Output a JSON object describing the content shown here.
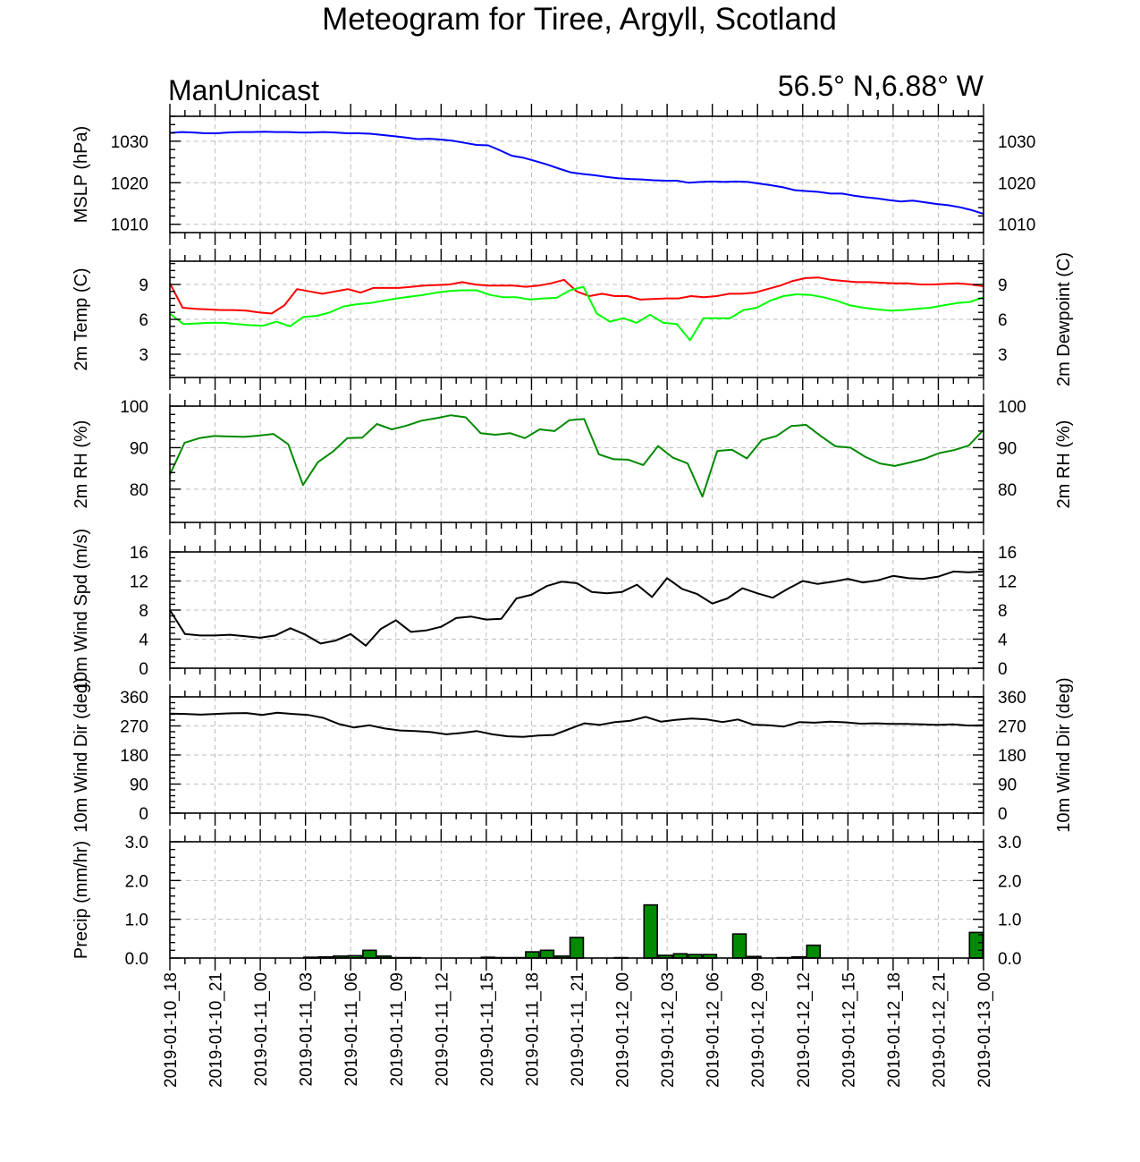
{
  "header": {
    "title": "Meteogram for Tiree, Argyll, Scotland",
    "model": "ManUnicast",
    "location": "56.5° N,6.88° W"
  },
  "time_labels": [
    "2019-01-10_18",
    "2019-01-10_21",
    "2019-01-11_00",
    "2019-01-11_03",
    "2019-01-11_06",
    "2019-01-11_09",
    "2019-01-11_12",
    "2019-01-11_15",
    "2019-01-11_18",
    "2019-01-11_21",
    "2019-01-12_00",
    "2019-01-12_03",
    "2019-01-12_06",
    "2019-01-12_09",
    "2019-01-12_12",
    "2019-01-12_15",
    "2019-01-12_18",
    "2019-01-12_21",
    "2019-01-13_00"
  ],
  "chart_data": [
    {
      "type": "line",
      "panel": "mslp",
      "ylabel": "MSLP (hPa)",
      "ylim": [
        1008,
        1036
      ],
      "yticks": [
        1010,
        1020,
        1030
      ],
      "tick_format": "0",
      "series": [
        {
          "color": "#0000ff",
          "values": [
            1032,
            1032.2,
            1032.1,
            1031.9,
            1031.9,
            1032.1,
            1032.2,
            1032.2,
            1032.3,
            1032.2,
            1032.2,
            1032.1,
            1032.1,
            1032.2,
            1032.1,
            1031.9,
            1031.9,
            1031.8,
            1031.5,
            1031.2,
            1030.9,
            1030.5,
            1030.6,
            1030.4,
            1030.1,
            1029.6,
            1029.1,
            1029,
            1027.8,
            1026.5,
            1026,
            1025.2,
            1024.4,
            1023.4,
            1022.5,
            1022.1,
            1021.8,
            1021.4,
            1021.1,
            1020.9,
            1020.8,
            1020.6,
            1020.5,
            1020.5,
            1020,
            1020.2,
            1020.3,
            1020.2,
            1020.3,
            1020.2,
            1019.8,
            1019.4,
            1018.9,
            1018.2,
            1018,
            1017.8,
            1017.4,
            1017.4,
            1016.9,
            1016.5,
            1016.2,
            1015.8,
            1015.5,
            1015.7,
            1015.3,
            1014.9,
            1014.6,
            1014.1,
            1013.4,
            1012.5
          ]
        }
      ]
    },
    {
      "type": "line",
      "panel": "temperature",
      "ylabel": "2m Temp (C)",
      "ylabel_right": "2m Dewpoint (C)",
      "ylim": [
        1,
        11
      ],
      "yticks": [
        3,
        6,
        9
      ],
      "tick_format": "0",
      "series": [
        {
          "color": "#ff0000",
          "values": [
            9.1,
            7,
            6.9,
            6.85,
            6.8,
            6.8,
            6.75,
            6.6,
            6.5,
            7.2,
            8.6,
            8.4,
            8.2,
            8.4,
            8.6,
            8.3,
            8.7,
            8.7,
            8.7,
            8.8,
            8.9,
            8.95,
            9,
            9.2,
            9.0,
            8.9,
            8.9,
            8.9,
            8.8,
            8.9,
            9.1,
            9.4,
            8.4,
            8.0,
            8.2,
            8.0,
            8.0,
            7.7,
            7.75,
            7.8,
            7.8,
            8.0,
            7.9,
            8.0,
            8.2,
            8.2,
            8.3,
            8.6,
            8.9,
            9.3,
            9.55,
            9.6,
            9.4,
            9.3,
            9.2,
            9.2,
            9.15,
            9.1,
            9.1,
            9.0,
            9.0,
            9.05,
            9.1,
            9.0,
            8.85
          ]
        },
        {
          "color": "#00ff00",
          "values": [
            6.5,
            5.6,
            5.65,
            5.7,
            5.7,
            5.6,
            5.5,
            5.45,
            5.8,
            5.4,
            6.2,
            6.3,
            6.6,
            7.1,
            7.3,
            7.4,
            7.6,
            7.8,
            7.95,
            8.1,
            8.3,
            8.45,
            8.5,
            8.5,
            8.1,
            7.9,
            7.9,
            7.7,
            7.8,
            7.85,
            8.5,
            8.8,
            6.5,
            5.8,
            6.1,
            5.7,
            6.4,
            5.7,
            5.6,
            4.2,
            6.1,
            6.1,
            6.1,
            6.8,
            7.0,
            7.6,
            8.0,
            8.15,
            8.1,
            7.9,
            7.6,
            7.2,
            7.0,
            6.85,
            6.75,
            6.8,
            6.9,
            7.0,
            7.2,
            7.4,
            7.5,
            7.9
          ]
        }
      ]
    },
    {
      "type": "line",
      "panel": "rh",
      "ylabel": "2m RH (%)",
      "ylabel_right": "2m RH (%)",
      "ylim": [
        72,
        100
      ],
      "yticks": [
        80,
        90,
        100
      ],
      "tick_format": "0",
      "series": [
        {
          "color": "#008a00",
          "values": [
            83.5,
            91.2,
            92.3,
            92.8,
            92.7,
            92.6,
            92.9,
            93.3,
            90.8,
            81,
            86.5,
            89,
            92.3,
            92.4,
            95.7,
            94.4,
            95.3,
            96.5,
            97.1,
            97.8,
            97.3,
            93.5,
            93.1,
            93.5,
            92.3,
            94.4,
            94.0,
            96.6,
            96.9,
            88.4,
            87.2,
            87.1,
            85.8,
            90.4,
            87.6,
            86.2,
            78.2,
            89.2,
            89.5,
            87.4,
            91.8,
            92.8,
            95.2,
            95.5,
            92.8,
            90.3,
            90,
            87.8,
            86.2,
            85.6,
            86.4,
            87.3,
            88.7,
            89.4,
            90.5,
            94.3
          ]
        }
      ]
    },
    {
      "type": "line",
      "panel": "wind_speed",
      "ylabel": "10m Wind Spd (m/s)",
      "ylim": [
        0,
        16
      ],
      "yticks": [
        0,
        4,
        8,
        12,
        16
      ],
      "tick_format": "0",
      "series": [
        {
          "color": "#000000",
          "values": [
            8,
            4.7,
            4.5,
            4.5,
            4.6,
            4.4,
            4.2,
            4.5,
            5.5,
            4.6,
            3.4,
            3.8,
            4.7,
            3.1,
            5.4,
            6.6,
            5,
            5.2,
            5.7,
            6.9,
            7.1,
            6.7,
            6.8,
            9.6,
            10.1,
            11.3,
            11.9,
            11.7,
            10.5,
            10.3,
            10.5,
            11.5,
            9.8,
            12.4,
            10.9,
            10.2,
            8.9,
            9.6,
            11,
            10.3,
            9.7,
            10.9,
            12,
            11.6,
            11.9,
            12.3,
            11.8,
            12.1,
            12.7,
            12.4,
            12.3,
            12.6,
            13.3,
            13.2,
            13.3
          ]
        }
      ]
    },
    {
      "type": "line",
      "panel": "wind_direction",
      "ylabel": "10m Wind Dir (deg)",
      "ylabel_right": "10m Wind Dir (deg)",
      "ylim": [
        0,
        360
      ],
      "yticks": [
        0,
        90,
        180,
        270,
        360
      ],
      "tick_format": "0",
      "series": [
        {
          "color": "#000000",
          "values": [
            308,
            307,
            305,
            307,
            309,
            310,
            304,
            311,
            307,
            304,
            295,
            276,
            265,
            272,
            262,
            256,
            254,
            251,
            244,
            248,
            254,
            244,
            238,
            236,
            240,
            242,
            260,
            278,
            273,
            282,
            286,
            298,
            283,
            289,
            293,
            290,
            282,
            290,
            274,
            272,
            268,
            282,
            280,
            283,
            281,
            277,
            278,
            276,
            276,
            275,
            273,
            275,
            271,
            272
          ]
        }
      ]
    },
    {
      "type": "bar",
      "panel": "precip",
      "ylabel": "Precip (mm/hr)",
      "ylim": [
        0,
        3
      ],
      "yticks": [
        0,
        1,
        2,
        3
      ],
      "tick_format": "0.0",
      "series": [
        {
          "color": "#008a00",
          "values": [
            0,
            0,
            0,
            0,
            0,
            0,
            0,
            0,
            0,
            0.02,
            0.03,
            0.05,
            0.06,
            0.2,
            0.05,
            0.01,
            0.01,
            0,
            0,
            0,
            0,
            0.02,
            0.01,
            0.01,
            0.16,
            0.2,
            0.05,
            0.53,
            0,
            0,
            0.01,
            0,
            1.37,
            0.07,
            0.11,
            0.09,
            0.09,
            0,
            0.62,
            0.04,
            0,
            0.01,
            0.03,
            0.33,
            0,
            0,
            0,
            0,
            0,
            0,
            0,
            0,
            0,
            0,
            0.66
          ]
        }
      ]
    }
  ]
}
